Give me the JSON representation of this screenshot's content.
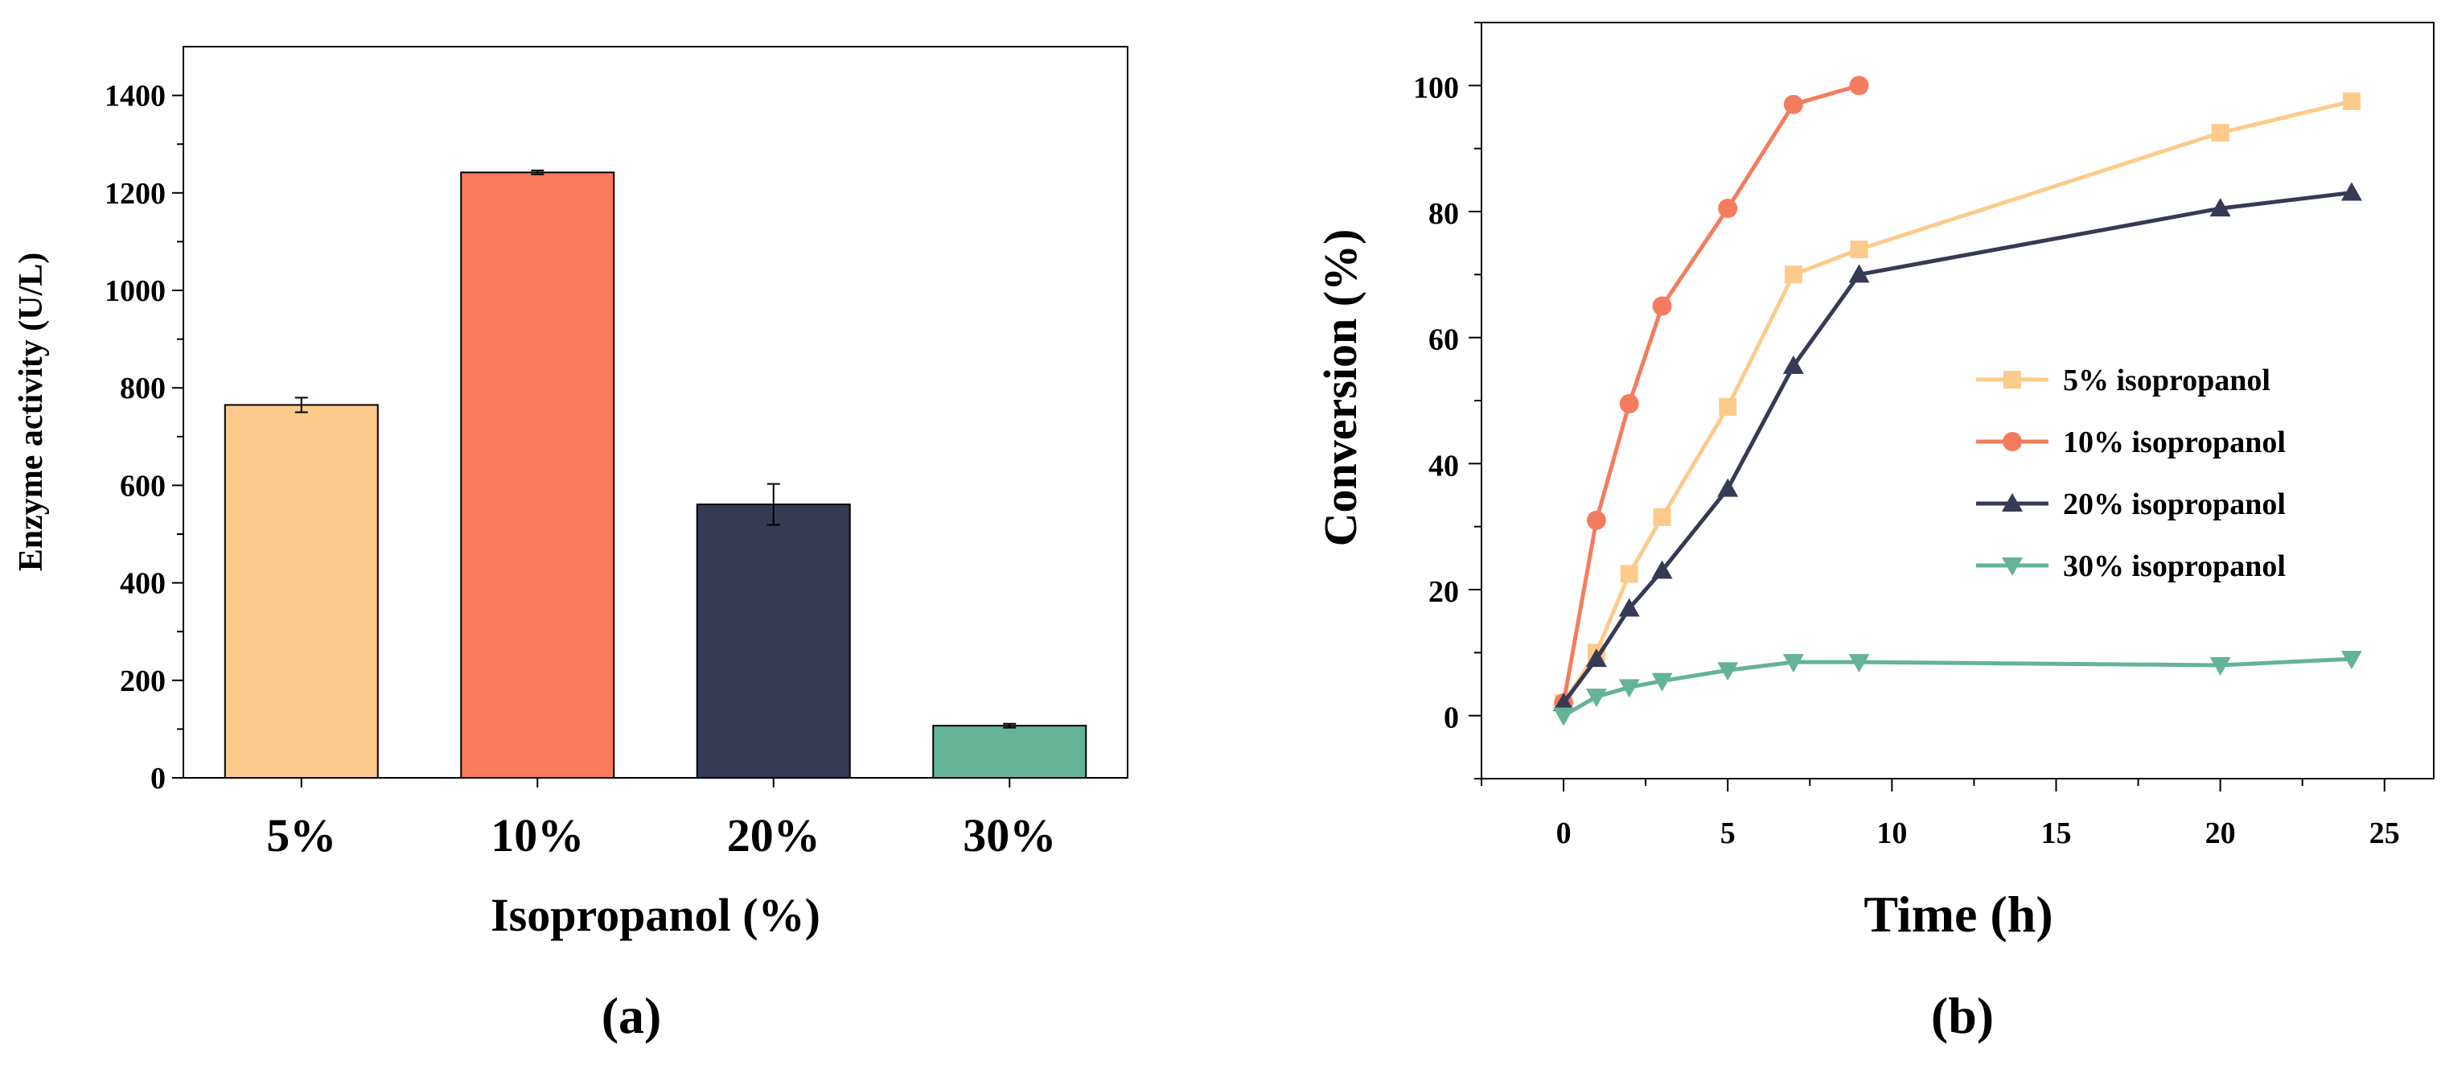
{
  "chart_data": [
    {
      "panel": "(a)",
      "type": "bar",
      "xlabel": "Isopropanol (%)",
      "ylabel": "Enzyme activity (U/L)",
      "categories": [
        "5%",
        "10%",
        "20%",
        "30%"
      ],
      "values": [
        765,
        1242,
        561,
        107
      ],
      "errors": [
        15,
        4,
        42,
        4
      ],
      "colors": [
        "#FCCB8C",
        "#FA7C5C",
        "#363A55",
        "#64B396"
      ],
      "ylim": [
        0,
        1500
      ],
      "yticks": [
        0,
        200,
        400,
        600,
        800,
        1000,
        1200,
        1400
      ],
      "ytick_labels": [
        "0",
        "200",
        "400",
        "600",
        "800",
        "1000",
        "1200",
        "1400"
      ]
    },
    {
      "panel": "(b)",
      "type": "line",
      "xlabel": "Time (h)",
      "ylabel": "Conversion (%)",
      "xlim": [
        -2.5,
        26.5
      ],
      "ylim": [
        -10,
        110
      ],
      "xticks": [
        0,
        5,
        10,
        15,
        20,
        25
      ],
      "xtick_labels": [
        "0",
        "5",
        "10",
        "15",
        "20",
        "25"
      ],
      "yticks": [
        0,
        20,
        40,
        60,
        80,
        100
      ],
      "ytick_labels": [
        "0",
        "20",
        "40",
        "60",
        "80",
        "100"
      ],
      "legend_position": "center-right",
      "series": [
        {
          "name": "5% isopropanol",
          "marker": "square",
          "color": "#FCCB8C",
          "x": [
            0,
            1,
            2,
            3,
            5,
            7,
            9,
            20,
            24
          ],
          "y": [
            2,
            10,
            22.5,
            31.5,
            49,
            70,
            74,
            92.5,
            97.5
          ]
        },
        {
          "name": "10% isopropanol",
          "marker": "circle",
          "color": "#F47C5E",
          "x": [
            0,
            1,
            2,
            3,
            5,
            7,
            9
          ],
          "y": [
            2,
            31,
            49.5,
            65,
            80.5,
            97,
            100
          ]
        },
        {
          "name": "20% isopropanol",
          "marker": "triangle-up",
          "color": "#363A55",
          "x": [
            0,
            1,
            2,
            3,
            5,
            7,
            9,
            20,
            24
          ],
          "y": [
            2,
            9,
            17,
            23,
            36,
            55.5,
            70,
            80.5,
            83
          ]
        },
        {
          "name": "30% isopropanol",
          "marker": "triangle-down",
          "color": "#64B396",
          "x": [
            0,
            1,
            2,
            3,
            5,
            7,
            9,
            20,
            24
          ],
          "y": [
            0,
            3,
            4.5,
            5.5,
            7.2,
            8.5,
            8.5,
            8,
            9
          ]
        }
      ]
    }
  ]
}
